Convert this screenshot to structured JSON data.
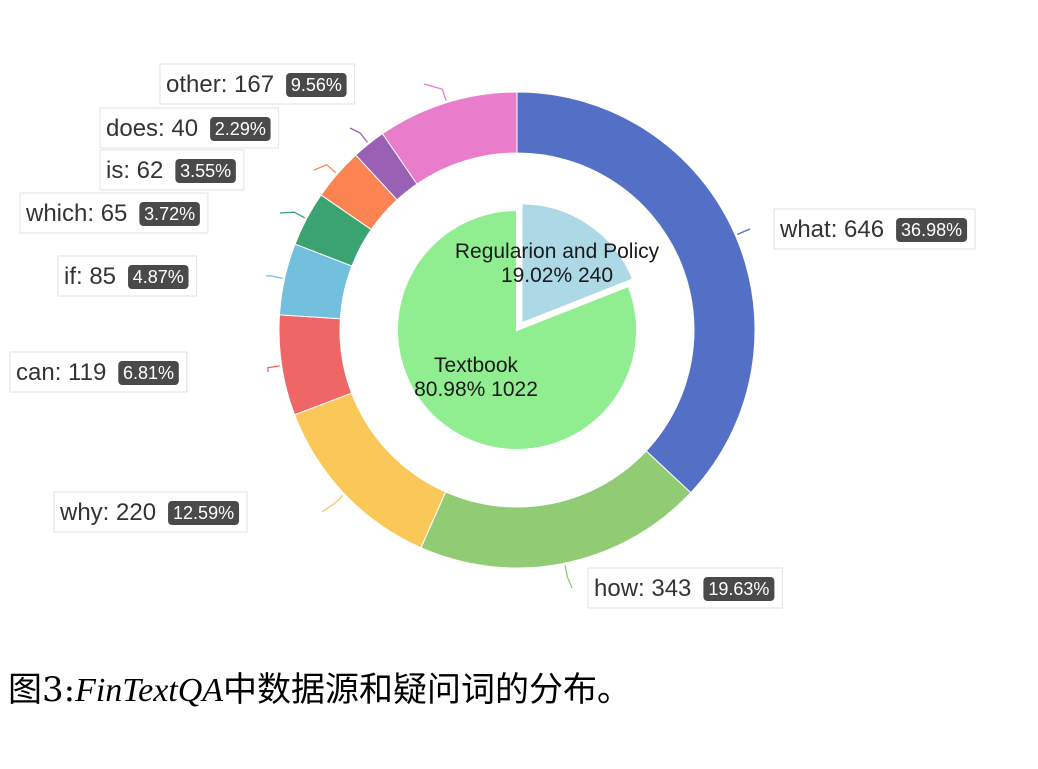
{
  "chart_data": {
    "type": "pie",
    "inner_pie": {
      "label_format": "{name}\n{percent} {value}",
      "slices": [
        {
          "name": "Regularion and Policy",
          "value": 240,
          "percent": "19.02%",
          "color": "#add8e6"
        },
        {
          "name": "Textbook",
          "value": 1022,
          "percent": "80.98%",
          "color": "#90ee90"
        }
      ]
    },
    "outer_donut": {
      "label_format": "{name}: {value} {percent}",
      "slices": [
        {
          "name": "what",
          "value": 646,
          "percent": "36.98%",
          "color": "#5470c6"
        },
        {
          "name": "how",
          "value": 343,
          "percent": "19.63%",
          "color": "#91cc75"
        },
        {
          "name": "why",
          "value": 220,
          "percent": "12.59%",
          "color": "#fac858"
        },
        {
          "name": "can",
          "value": 119,
          "percent": "6.81%",
          "color": "#ee6666"
        },
        {
          "name": "if",
          "value": 85,
          "percent": "4.87%",
          "color": "#73c0de"
        },
        {
          "name": "which",
          "value": 65,
          "percent": "3.72%",
          "color": "#3ba272"
        },
        {
          "name": "is",
          "value": 62,
          "percent": "3.55%",
          "color": "#fc8452"
        },
        {
          "name": "does",
          "value": 40,
          "percent": "2.29%",
          "color": "#9a60b4"
        },
        {
          "name": "other",
          "value": 167,
          "percent": "9.56%",
          "color": "#ea7ccc"
        }
      ]
    }
  },
  "caption": {
    "prefix": "图3:",
    "name": "FinTextQA",
    "suffix": "中数据源和疑问词的分布。"
  }
}
